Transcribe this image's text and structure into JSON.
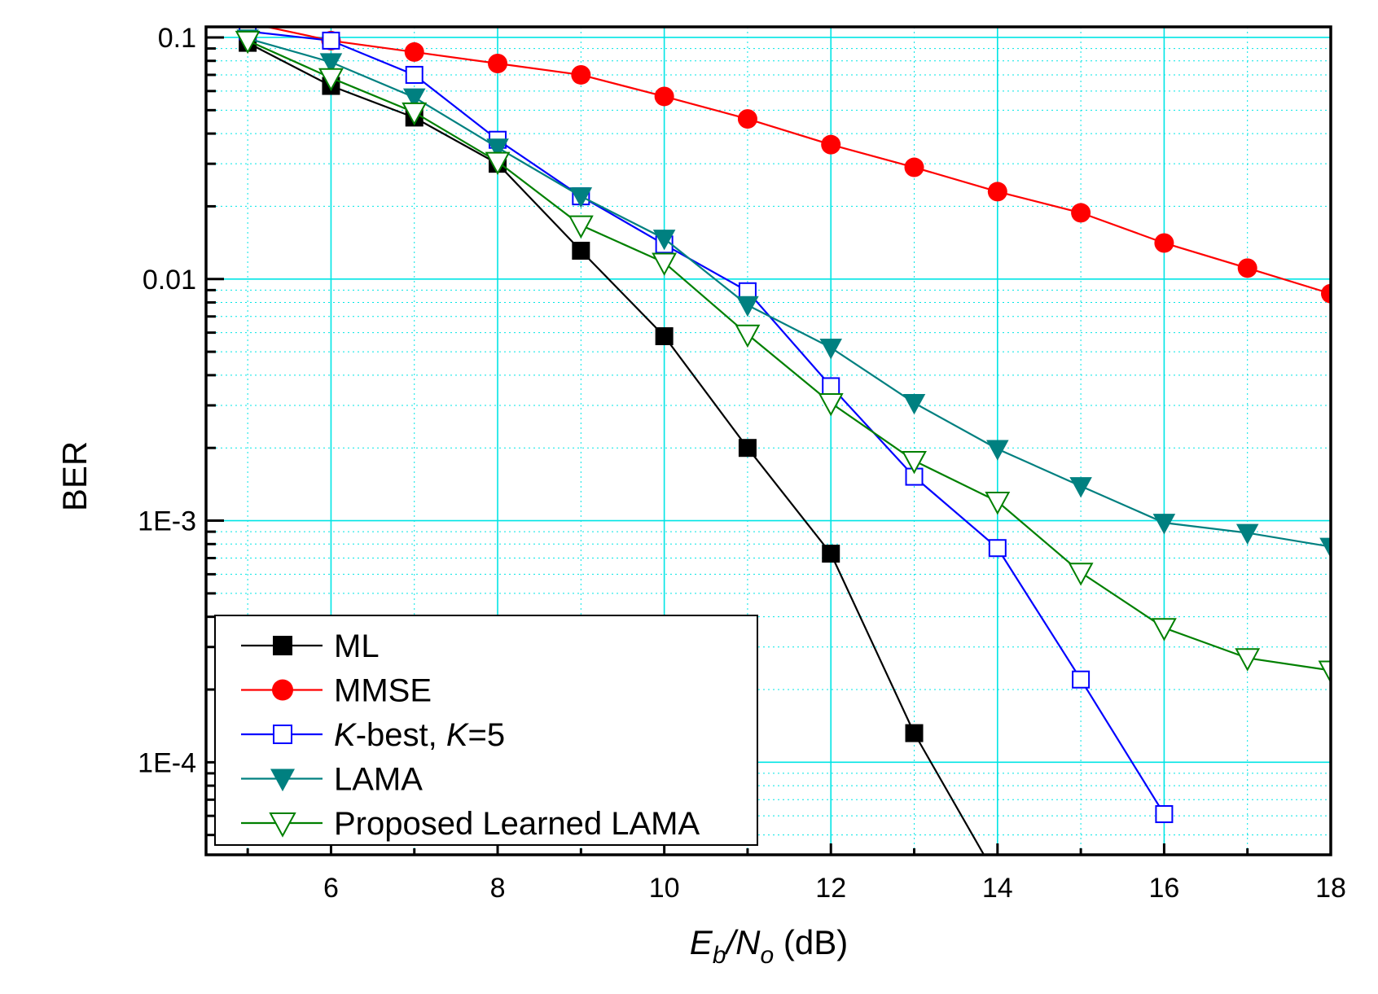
{
  "chart_data": {
    "type": "line",
    "title": "",
    "xlabel": {
      "base": "E",
      "sub1": "b",
      "slash": "/N",
      "sub2": "o",
      "unit": " (dB)"
    },
    "ylabel": "BER",
    "xlim": [
      4.5,
      18
    ],
    "ylim": [
      4.14e-05,
      0.1106
    ],
    "yscale": "log",
    "xticks": [
      6,
      8,
      10,
      12,
      14,
      16,
      18
    ],
    "yticks": [
      {
        "value": 0.1,
        "label": "0.1"
      },
      {
        "value": 0.01,
        "label": "0.01"
      },
      {
        "value": 0.001,
        "label": "1E-3"
      },
      {
        "value": 0.0001,
        "label": "1E-4"
      }
    ],
    "grid": true,
    "legend_placement": "bottom-left",
    "series": [
      {
        "name": "ML",
        "color": "#000000",
        "marker": "filled-square",
        "x": [
          5,
          6,
          7,
          8,
          9,
          10,
          11,
          12,
          13,
          14
        ],
        "y": [
          0.095,
          0.063,
          0.0466,
          0.03,
          0.0131,
          0.0058,
          0.002,
          0.00073,
          0.000132,
          3.3e-05
        ]
      },
      {
        "name": "MMSE",
        "color": "#ff0000",
        "marker": "filled-circle",
        "x": [
          5,
          6,
          7,
          8,
          9,
          10,
          11,
          12,
          13,
          14,
          15,
          16,
          17,
          18
        ],
        "y": [
          0.115,
          0.097,
          0.087,
          0.078,
          0.07,
          0.057,
          0.046,
          0.036,
          0.029,
          0.023,
          0.0188,
          0.0141,
          0.0111,
          0.0087
        ]
      },
      {
        "name": "K-best, K=5",
        "color": "#0000ff",
        "marker": "open-square",
        "x": [
          5,
          6,
          7,
          8,
          9,
          10,
          11,
          12,
          13,
          14,
          15,
          16
        ],
        "y": [
          0.106,
          0.097,
          0.07,
          0.0377,
          0.022,
          0.0139,
          0.0089,
          0.0036,
          0.00152,
          0.00077,
          0.00022,
          6.1e-05
        ]
      },
      {
        "name": "LAMA",
        "color": "#008080",
        "marker": "filled-triangle-down",
        "x": [
          5,
          6,
          7,
          8,
          9,
          10,
          11,
          12,
          13,
          14,
          15,
          16,
          17,
          18
        ],
        "y": [
          0.099,
          0.079,
          0.0565,
          0.035,
          0.022,
          0.0147,
          0.0078,
          0.0052,
          0.00307,
          0.00198,
          0.00139,
          0.00098,
          0.00089,
          0.00078
        ]
      },
      {
        "name": "Proposed Learned LAMA",
        "color": "#008000",
        "marker": "open-triangle-down",
        "x": [
          5,
          6,
          7,
          8,
          9,
          10,
          11,
          12,
          13,
          14,
          15,
          16,
          17,
          18
        ],
        "y": [
          0.097,
          0.068,
          0.049,
          0.0306,
          0.0167,
          0.0117,
          0.0059,
          0.00307,
          0.00177,
          0.0012,
          0.00061,
          0.00036,
          0.00027,
          0.00024
        ]
      }
    ],
    "legend_labels": [
      {
        "parts": [
          {
            "t": "ML",
            "i": false
          }
        ]
      },
      {
        "parts": [
          {
            "t": "MMSE",
            "i": false
          }
        ]
      },
      {
        "parts": [
          {
            "t": "K",
            "i": true
          },
          {
            "t": "-best, ",
            "i": false
          },
          {
            "t": "K",
            "i": true
          },
          {
            "t": "=5",
            "i": false
          }
        ]
      },
      {
        "parts": [
          {
            "t": "LAMA",
            "i": false
          }
        ]
      },
      {
        "parts": [
          {
            "t": "Proposed Learned LAMA",
            "i": false
          }
        ]
      }
    ],
    "grid_color": "#00e5e5"
  }
}
